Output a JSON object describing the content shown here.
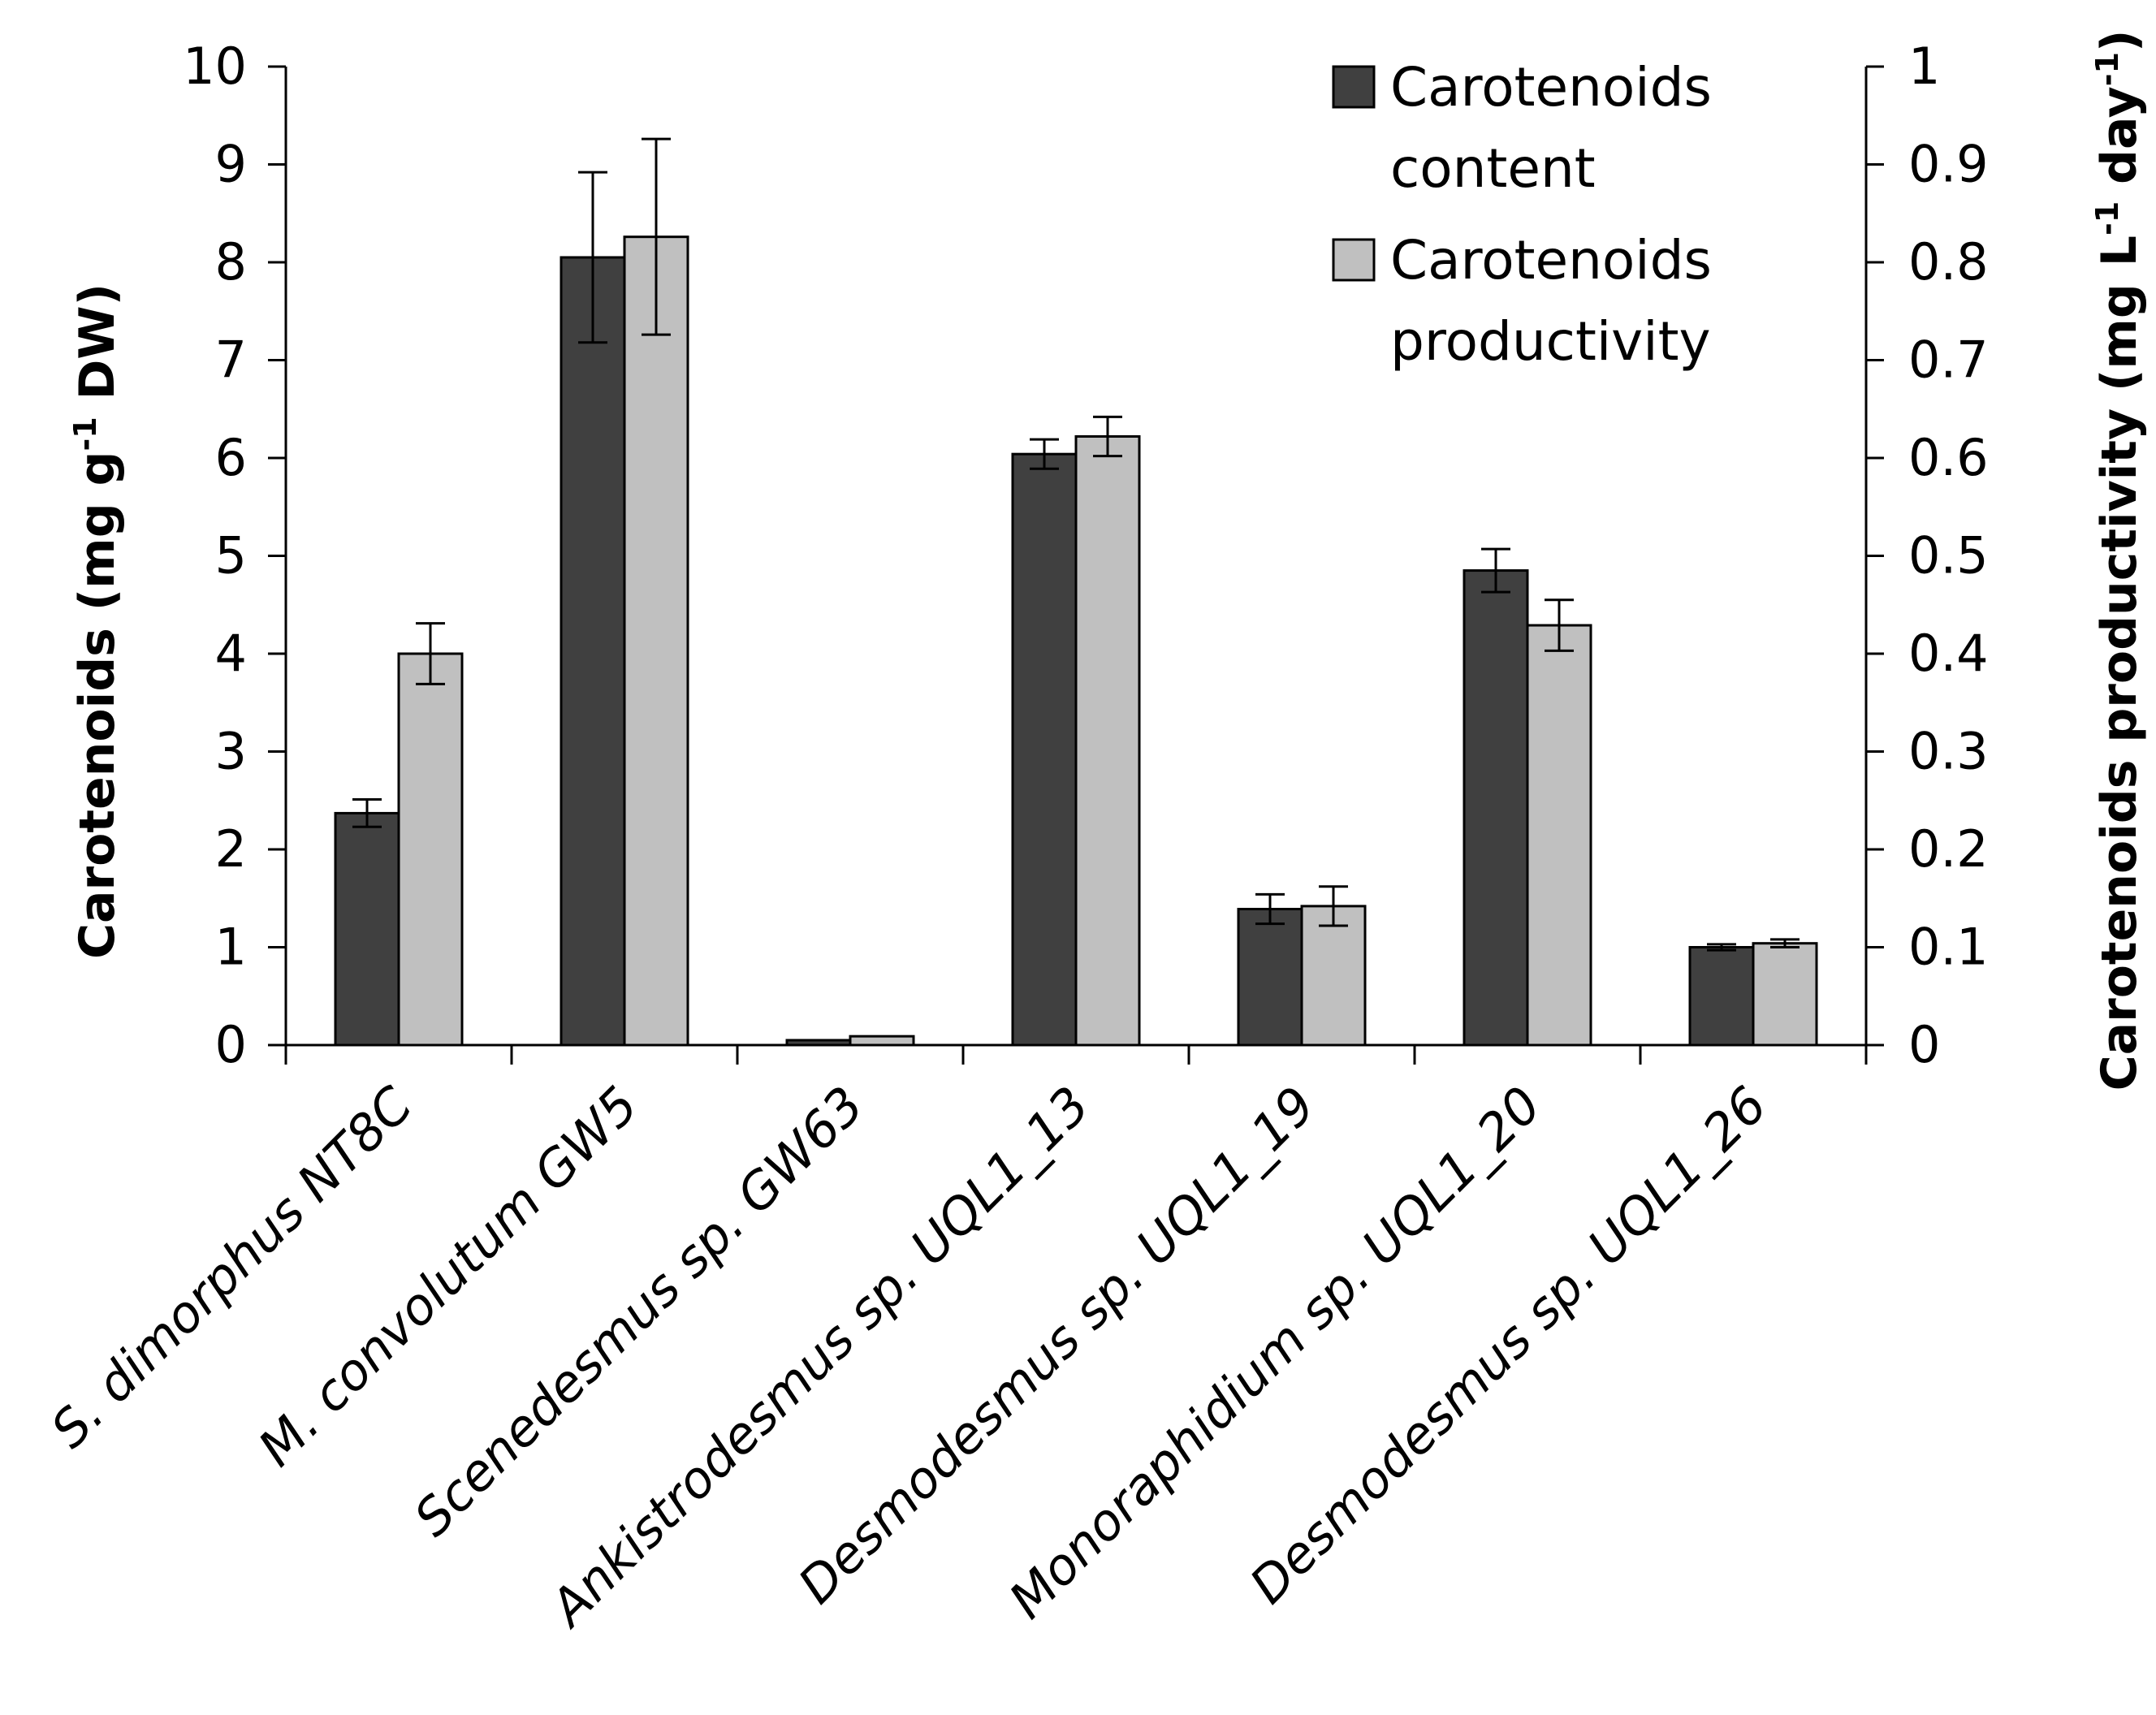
{
  "chart_data": {
    "type": "bar",
    "categories": [
      "S. dimorphus NT8C",
      "M. convolutum GW5",
      "Scenedesmus sp. GW63",
      "Ankistrodesmus sp. UQL1_13",
      "Desmodesmus sp. UQL1_19",
      "Monoraphidium sp. UQL1_20",
      "Desmodesmus sp. UQL1_26"
    ],
    "series": [
      {
        "name": "Carotenoids content",
        "label_lines": [
          "Carotenoids",
          "content"
        ],
        "axis": "left",
        "color": "#404040",
        "values": [
          2.37,
          8.05,
          0.05,
          6.04,
          1.39,
          4.85,
          1.0
        ],
        "errors": [
          0.14,
          0.87,
          0.0,
          0.15,
          0.15,
          0.22,
          0.03
        ]
      },
      {
        "name": "Carotenoids productivity",
        "label_lines": [
          "Carotenoids",
          "productivity"
        ],
        "axis": "right",
        "color": "#c0c0c0",
        "values": [
          0.4,
          0.826,
          0.009,
          0.622,
          0.142,
          0.429,
          0.104
        ],
        "errors": [
          0.031,
          0.1,
          0.0,
          0.02,
          0.02,
          0.026,
          0.004
        ]
      }
    ],
    "y_left": {
      "title_main": "Carotenoids (mg g",
      "title_sup": "-1",
      "title_end": " DW)",
      "lim": [
        0,
        10
      ],
      "ticks": [
        "0",
        "1",
        "2",
        "3",
        "4",
        "5",
        "6",
        "7",
        "8",
        "9",
        "10"
      ]
    },
    "y_right": {
      "title_main": "Carotenoids productivity (mg L",
      "title_sup1": "-1",
      "title_mid": " day",
      "title_sup2": "-1",
      "title_end": ")",
      "lim": [
        0,
        1
      ],
      "ticks": [
        "0",
        "0.1",
        "0.2",
        "0.3",
        "0.4",
        "0.5",
        "0.6",
        "0.7",
        "0.8",
        "0.9",
        "1"
      ]
    },
    "legend_position": "top-right",
    "grid": false
  }
}
